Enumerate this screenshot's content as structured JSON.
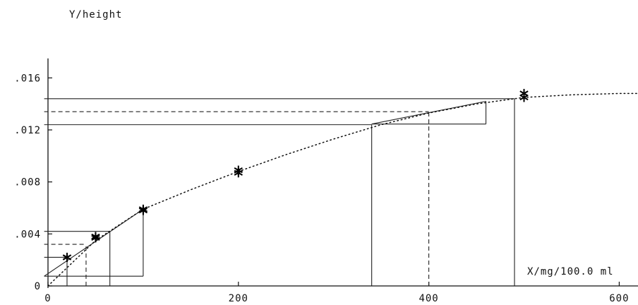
{
  "chart_data": {
    "type": "scatter",
    "xlabel": "X/mg/100.0 ml",
    "ylabel": "Y/height",
    "xlim": [
      0,
      620
    ],
    "ylim": [
      0,
      0.0175
    ],
    "xticks": [
      0,
      200,
      400,
      600
    ],
    "xtick_labels": [
      "0",
      "200",
      "400",
      "600"
    ],
    "yticks": [
      0,
      0.004,
      0.008,
      0.012,
      0.016
    ],
    "ytick_labels": [
      "0",
      ".004",
      ".008",
      ".012",
      ".016"
    ],
    "grid": false,
    "series": [
      {
        "kind": "points",
        "marker": "asterisk",
        "x": [
          20,
          20,
          50,
          50,
          100,
          100,
          200,
          200,
          500,
          500
        ],
        "y": [
          0.0022,
          0.0022,
          0.0038,
          0.0037,
          0.0059,
          0.0058,
          0.0089,
          0.0087,
          0.0148,
          0.0145
        ]
      },
      {
        "kind": "fit-curve",
        "style": "dotted",
        "x": [
          0,
          50,
          100,
          150,
          200,
          250,
          300,
          350,
          400,
          450,
          500,
          550,
          600,
          620
        ],
        "y": [
          0.0,
          0.0035,
          0.0059,
          0.0074,
          0.0088,
          0.0101,
          0.0113,
          0.0124,
          0.0133,
          0.014,
          0.0145,
          0.0147,
          0.0148,
          0.0148
        ]
      }
    ],
    "annotations": {
      "solid_lines": [
        {
          "x": [
            -4,
            100
          ],
          "y": [
            0.00075,
            0.00075
          ]
        },
        {
          "x": [
            -4,
            100
          ],
          "y": [
            0.00075,
            0.0059
          ]
        },
        {
          "x": [
            100,
            100
          ],
          "y": [
            0.00075,
            0.0059
          ]
        },
        {
          "x": [
            -4,
            65
          ],
          "y": [
            0.0042,
            0.0042
          ]
        },
        {
          "x": [
            65,
            65
          ],
          "y": [
            0,
            0.0042
          ]
        },
        {
          "x": [
            -4,
            20
          ],
          "y": [
            0.0022,
            0.0022
          ]
        },
        {
          "x": [
            20,
            20
          ],
          "y": [
            0,
            0.0022
          ]
        },
        {
          "x": [
            -4,
            340
          ],
          "y": [
            0.0124,
            0.0124
          ]
        },
        {
          "x": [
            340,
            340
          ],
          "y": [
            0,
            0.0124
          ]
        },
        {
          "x": [
            340,
            460
          ],
          "y": [
            0.01245,
            0.01245
          ]
        },
        {
          "x": [
            340,
            460
          ],
          "y": [
            0.01245,
            0.0142
          ]
        },
        {
          "x": [
            460,
            460
          ],
          "y": [
            0.01245,
            0.0142
          ]
        },
        {
          "x": [
            -4,
            490
          ],
          "y": [
            0.0144,
            0.0144
          ]
        },
        {
          "x": [
            490,
            490
          ],
          "y": [
            0,
            0.0144
          ]
        }
      ],
      "dashed_lines": [
        {
          "x": [
            -4,
            40
          ],
          "y": [
            0.0032,
            0.0032
          ]
        },
        {
          "x": [
            40,
            40
          ],
          "y": [
            0,
            0.0032
          ]
        },
        {
          "x": [
            -4,
            400
          ],
          "y": [
            0.0134,
            0.0134
          ]
        },
        {
          "x": [
            400,
            400
          ],
          "y": [
            0,
            0.0134
          ]
        }
      ]
    }
  }
}
